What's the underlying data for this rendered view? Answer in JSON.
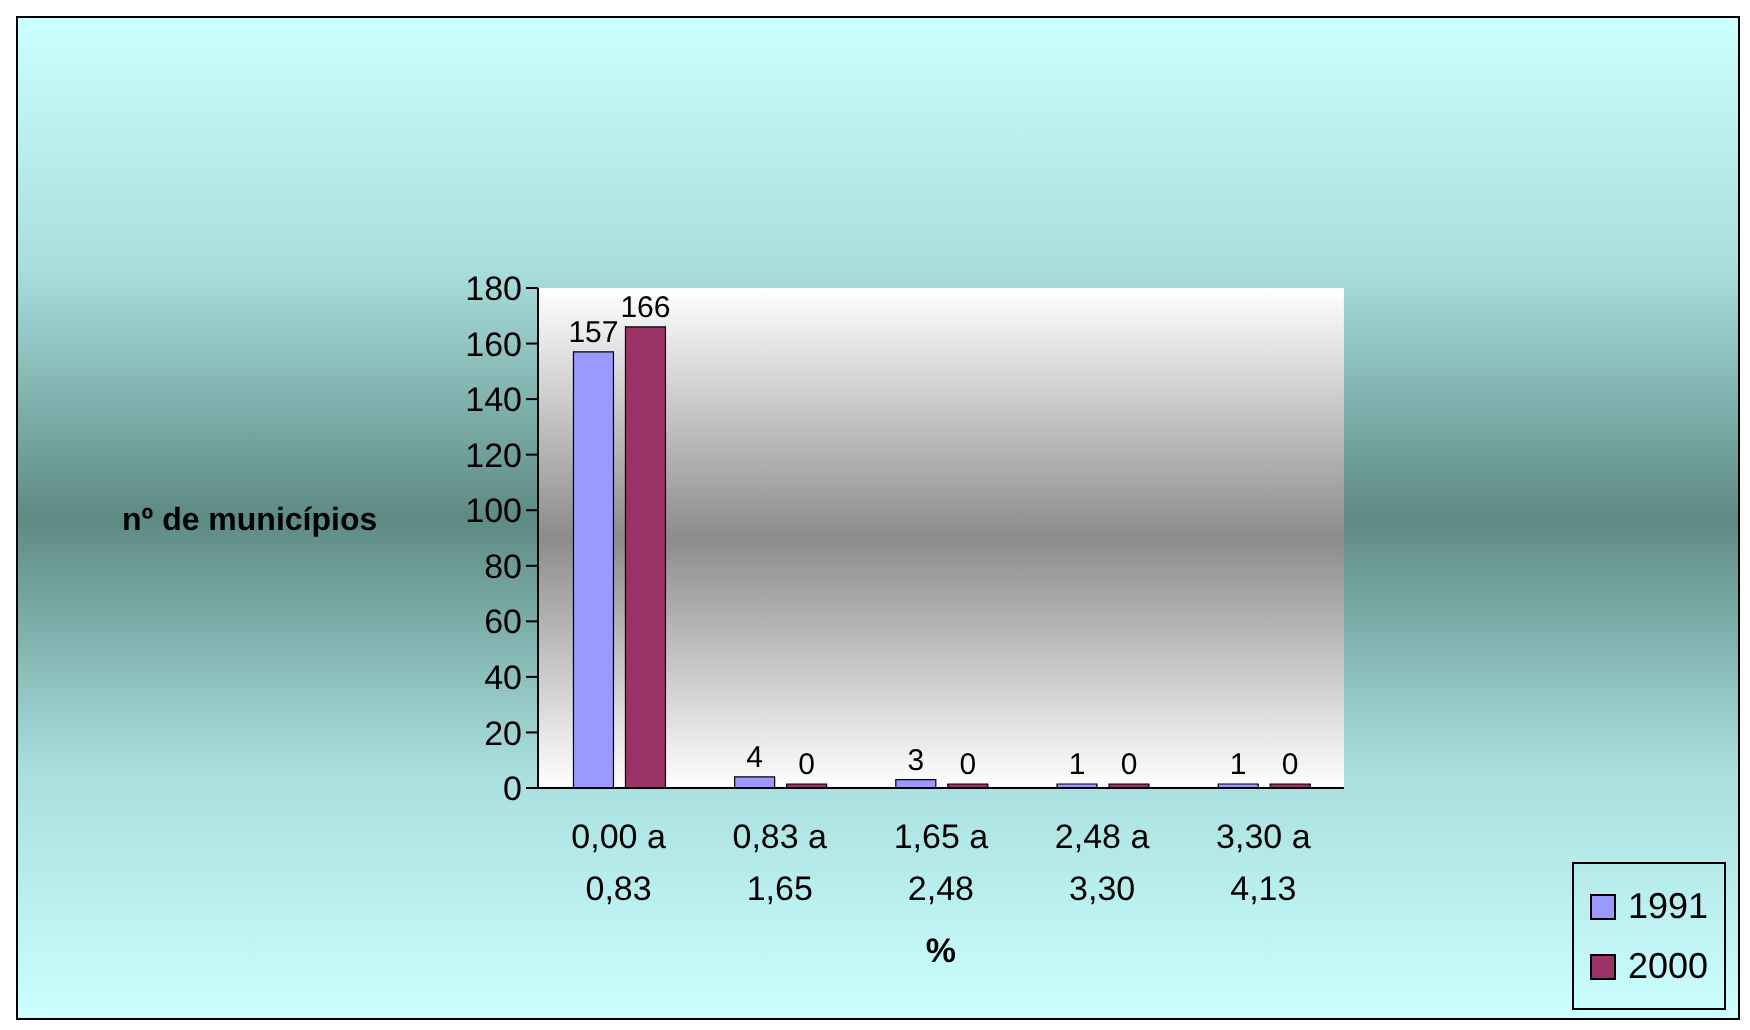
{
  "chart_data": {
    "type": "bar",
    "xlabel": "%",
    "ylabel": "nº de municípios",
    "categories": [
      "0,00 a 0,83",
      "0,83 a 1,65",
      "1,65 a 2,48",
      "2,48 a 3,30",
      "3,30 a 4,13"
    ],
    "series": [
      {
        "name": "1991",
        "color": "#9999ff",
        "values": [
          157,
          4,
          3,
          1,
          1
        ]
      },
      {
        "name": "2000",
        "color": "#993366",
        "values": [
          166,
          0,
          0,
          0,
          0
        ]
      }
    ],
    "ylim": [
      0,
      180
    ],
    "yticks": [
      0,
      20,
      40,
      60,
      80,
      100,
      120,
      140,
      160,
      180
    ],
    "data_labels": true,
    "legend": "bottom right",
    "grid": false
  }
}
